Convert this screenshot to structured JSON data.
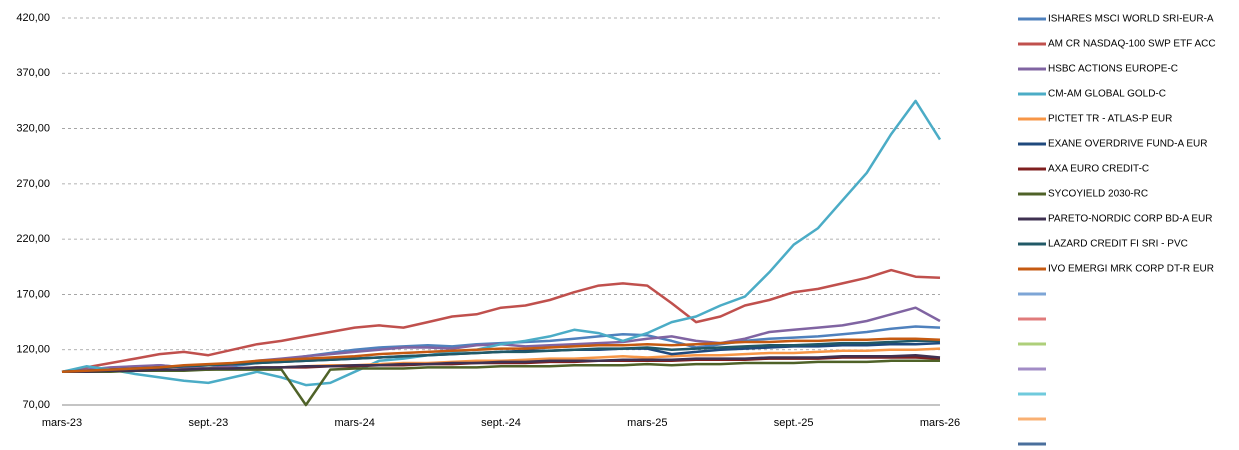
{
  "chart_data": {
    "type": "line",
    "categories": [
      "mars-23",
      null,
      null,
      null,
      null,
      null,
      "sept.-23",
      null,
      null,
      null,
      null,
      null,
      "mars-24",
      null,
      null,
      null,
      null,
      null,
      "sept.-24",
      null,
      null,
      null,
      null,
      null,
      "mars-25",
      null,
      null,
      null,
      null,
      null,
      "sept.-25",
      null,
      null,
      null,
      null,
      null,
      "mars-26"
    ],
    "ylim": [
      70,
      420
    ],
    "yticks": [
      {
        "value": 70,
        "label": "70,00"
      },
      {
        "value": 120,
        "label": "120,00"
      },
      {
        "value": 170,
        "label": "170,00"
      },
      {
        "value": 220,
        "label": "220,00"
      },
      {
        "value": 270,
        "label": "270,00"
      },
      {
        "value": 320,
        "label": "320,00"
      },
      {
        "value": 370,
        "label": "370,00"
      },
      {
        "value": 420,
        "label": "420,00"
      }
    ],
    "grid": true,
    "legend": "right",
    "series": [
      {
        "name": "ISHARES MSCI WORLD SRI-EUR-A",
        "color": "#4f81bd",
        "values": [
          100,
          101,
          103,
          104,
          106,
          104,
          102,
          105,
          108,
          111,
          114,
          117,
          120,
          122,
          123,
          124,
          123,
          125,
          126,
          127,
          128,
          130,
          132,
          134,
          133,
          128,
          122,
          125,
          128,
          130,
          131,
          132,
          134,
          136,
          139,
          141,
          140
        ]
      },
      {
        "name": "AM CR NASDAQ-100 SWP ETF ACC",
        "color": "#c0504d",
        "values": [
          100,
          104,
          108,
          112,
          116,
          118,
          115,
          120,
          125,
          128,
          132,
          136,
          140,
          142,
          140,
          145,
          150,
          152,
          158,
          160,
          165,
          172,
          178,
          180,
          178,
          162,
          145,
          150,
          160,
          165,
          172,
          175,
          180,
          185,
          192,
          186,
          185
        ]
      },
      {
        "name": "HSBC ACTIONS EUROPE-C",
        "color": "#8064a2",
        "values": [
          100,
          102,
          104,
          105,
          106,
          104,
          103,
          106,
          110,
          112,
          114,
          116,
          118,
          120,
          122,
          122,
          121,
          124,
          125,
          123,
          124,
          125,
          126,
          127,
          130,
          132,
          128,
          126,
          130,
          136,
          138,
          140,
          142,
          146,
          152,
          158,
          146
        ]
      },
      {
        "name": "CM-AM  GLOBAL GOLD-C",
        "color": "#4bacc6",
        "values": [
          100,
          105,
          102,
          98,
          95,
          92,
          90,
          95,
          100,
          95,
          88,
          90,
          100,
          110,
          112,
          115,
          118,
          120,
          125,
          128,
          132,
          138,
          135,
          128,
          135,
          145,
          150,
          160,
          168,
          190,
          215,
          230,
          255,
          280,
          315,
          345,
          310
        ]
      },
      {
        "name": "PICTET TR - ATLAS-P EUR",
        "color": "#f79646",
        "values": [
          100,
          100,
          101,
          101,
          102,
          102,
          103,
          103,
          104,
          104,
          105,
          106,
          106,
          107,
          108,
          108,
          109,
          110,
          110,
          111,
          112,
          112,
          113,
          114,
          113,
          114,
          115,
          115,
          116,
          117,
          117,
          118,
          119,
          119,
          120,
          120,
          121
        ]
      },
      {
        "name": "EXANE OVERDRIVE FUND-A EUR",
        "color": "#1f497d",
        "values": [
          100,
          101,
          102,
          103,
          104,
          105,
          106,
          107,
          108,
          109,
          110,
          111,
          112,
          113,
          114,
          115,
          116,
          117,
          118,
          119,
          119,
          120,
          120,
          121,
          121,
          116,
          118,
          120,
          121,
          122,
          123,
          123,
          124,
          124,
          125,
          125,
          126
        ]
      },
      {
        "name": "AXA EURO CREDIT-C",
        "color": "#7f1f1f",
        "values": [
          100,
          100,
          101,
          101,
          101,
          102,
          102,
          103,
          103,
          104,
          104,
          105,
          105,
          106,
          106,
          107,
          107,
          108,
          108,
          108,
          109,
          109,
          110,
          110,
          110,
          110,
          111,
          111,
          111,
          112,
          112,
          112,
          113,
          113,
          113,
          113,
          112
        ]
      },
      {
        "name": "SYCOYIELD 2030-RC",
        "color": "#4f6228",
        "values": [
          100,
          100,
          100,
          101,
          101,
          101,
          102,
          102,
          102,
          102,
          70,
          102,
          103,
          103,
          103,
          104,
          104,
          104,
          105,
          105,
          105,
          106,
          106,
          106,
          107,
          106,
          107,
          107,
          108,
          108,
          108,
          109,
          109,
          109,
          110,
          110,
          110
        ]
      },
      {
        "name": "PARETO-NORDIC CORP BD-A EUR",
        "color": "#3f3151",
        "values": [
          100,
          100,
          101,
          101,
          102,
          102,
          103,
          103,
          104,
          104,
          105,
          105,
          106,
          106,
          107,
          107,
          108,
          108,
          109,
          109,
          110,
          110,
          110,
          111,
          111,
          111,
          112,
          112,
          112,
          113,
          113,
          113,
          114,
          114,
          114,
          115,
          113
        ]
      },
      {
        "name": "LAZARD CREDIT FI SRI - PVC",
        "color": "#215967",
        "values": [
          100,
          101,
          102,
          103,
          104,
          105,
          106,
          107,
          108,
          109,
          110,
          111,
          112,
          113,
          114,
          115,
          116,
          117,
          118,
          118,
          119,
          120,
          121,
          121,
          122,
          120,
          121,
          122,
          123,
          124,
          124,
          125,
          126,
          126,
          127,
          128,
          128
        ]
      },
      {
        "name": "IVO EMERGI MRK CORP DT-R EUR",
        "color": "#c55a11",
        "values": [
          100,
          101,
          102,
          103,
          104,
          106,
          107,
          108,
          110,
          111,
          112,
          113,
          114,
          116,
          117,
          118,
          119,
          120,
          121,
          121,
          122,
          123,
          124,
          124,
          125,
          124,
          125,
          126,
          127,
          127,
          128,
          128,
          129,
          129,
          130,
          130,
          129
        ]
      }
    ],
    "unnamed_legend_colors": [
      "#7da5d6",
      "#e07b7b",
      "#aecf7a",
      "#a28cc6",
      "#6fcadc",
      "#f9b073",
      "#4a6f9c"
    ]
  }
}
